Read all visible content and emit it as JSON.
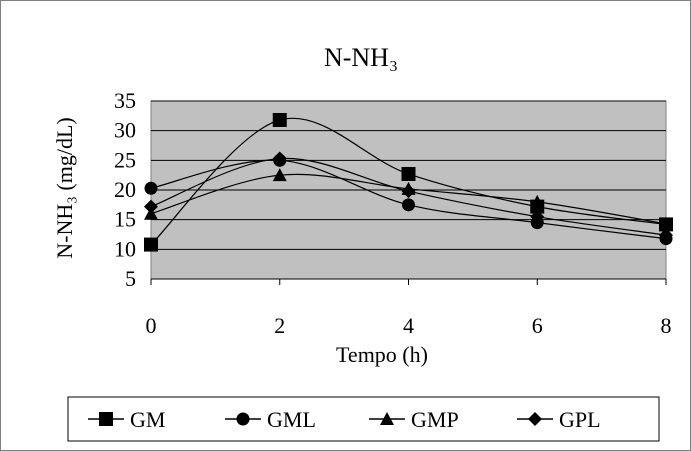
{
  "chart_data": {
    "type": "line",
    "title": "N-NH₃",
    "xlabel": "Tempo (h)",
    "ylabel": "N-NH₃ (mg/dL)",
    "x": [
      0,
      2,
      4,
      6,
      8
    ],
    "xticks": [
      "0",
      "2",
      "4",
      "6",
      "8"
    ],
    "yticks": [
      "5",
      "10",
      "15",
      "20",
      "25",
      "30",
      "35"
    ],
    "xlim": [
      0,
      8
    ],
    "ylim": [
      5,
      35
    ],
    "grid": true,
    "smooth": true,
    "plot_background": "#c0c0c0",
    "line_color": "#000000",
    "legend_position": "bottom",
    "series": [
      {
        "name": "GM",
        "marker": "square",
        "values": [
          10.8,
          31.8,
          22.7,
          17.2,
          14.2
        ]
      },
      {
        "name": "GML",
        "marker": "circle",
        "values": [
          20.3,
          25.0,
          17.5,
          14.5,
          11.8
        ]
      },
      {
        "name": "GMP",
        "marker": "triangle",
        "values": [
          16.0,
          22.5,
          20.2,
          18.0,
          14.3
        ]
      },
      {
        "name": "GPL",
        "marker": "diamond",
        "values": [
          17.2,
          25.3,
          19.8,
          15.5,
          12.4
        ]
      }
    ]
  }
}
